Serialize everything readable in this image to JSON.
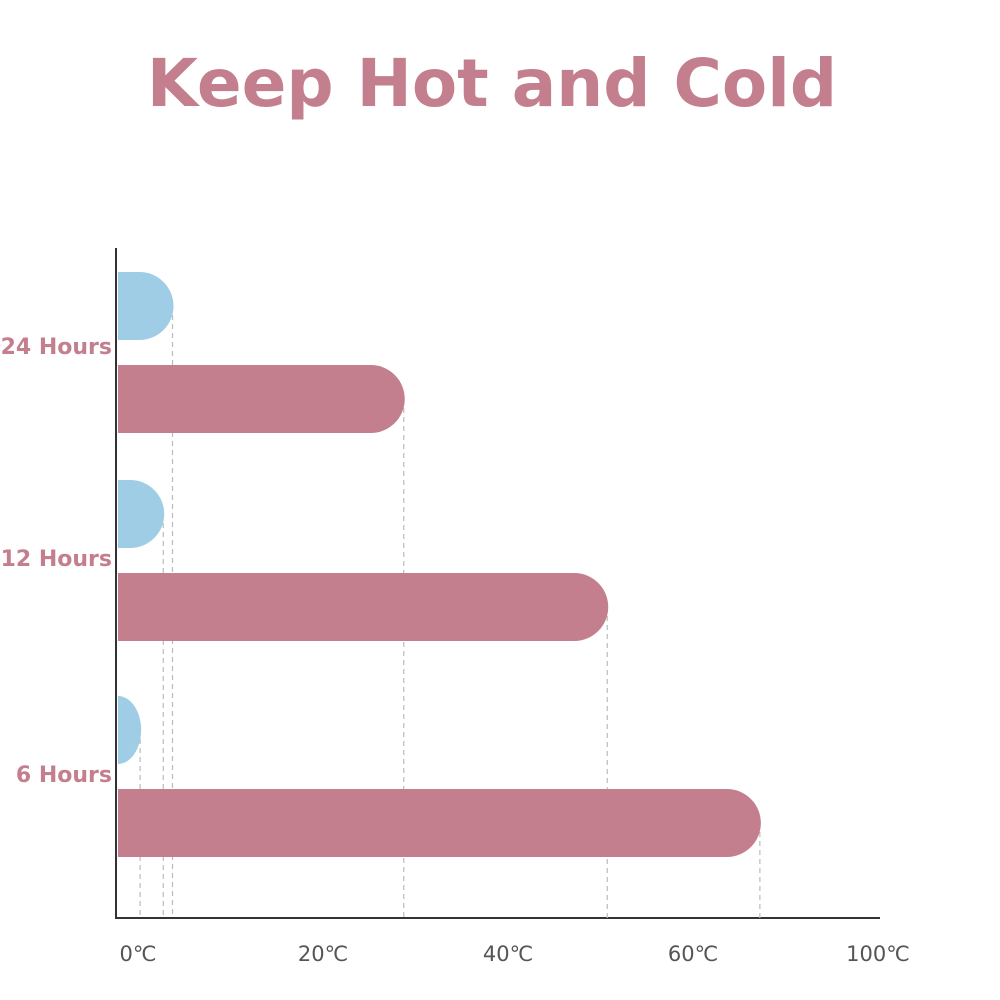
{
  "chart_data": {
    "type": "bar",
    "orientation": "horizontal",
    "title": "Keep Hot and Cold",
    "categories": [
      "24 Hours",
      "12 Hours",
      "6 Hours"
    ],
    "series": [
      {
        "color": "#a0cde6",
        "values": [
          6,
          5,
          2.5
        ]
      },
      {
        "color": "#c47f8e",
        "values": [
          31,
          53,
          79
        ]
      }
    ],
    "xlim": [
      0,
      100
    ],
    "xticks": [
      {
        "value": 0,
        "label": "0℃"
      },
      {
        "value": 20,
        "label": "20℃"
      },
      {
        "value": 40,
        "label": "40℃"
      },
      {
        "value": 60,
        "label": "60℃"
      },
      {
        "value": 100,
        "label": "100℃"
      }
    ],
    "grid": false
  }
}
